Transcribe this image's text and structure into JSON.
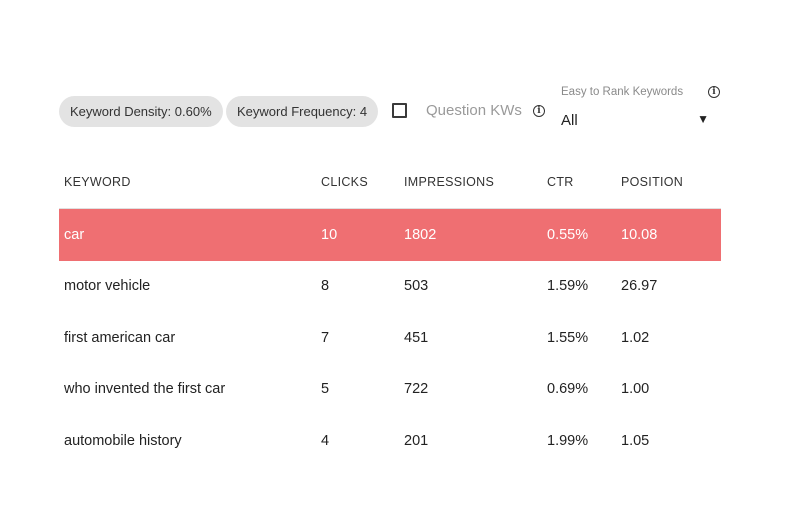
{
  "filters": {
    "density_chip": "Keyword Density: 0.60%",
    "frequency_chip": "Keyword Frequency: 4",
    "question_kws_label": "Question KWs",
    "question_kws_checked": false,
    "rank_label": "Easy to Rank Keywords",
    "rank_value": "All"
  },
  "colors": {
    "highlight_row": "#ef6f72",
    "chip_bg": "#e3e3e3"
  },
  "table": {
    "headers": {
      "keyword": "KEYWORD",
      "clicks": "CLICKS",
      "impressions": "IMPRESSIONS",
      "ctr": "CTR",
      "position": "POSITION"
    },
    "rows": [
      {
        "keyword": "car",
        "clicks": "10",
        "impressions": "1802",
        "ctr": "0.55%",
        "position": "10.08",
        "highlighted": true
      },
      {
        "keyword": "motor vehicle",
        "clicks": "8",
        "impressions": "503",
        "ctr": "1.59%",
        "position": "26.97"
      },
      {
        "keyword": "first american car",
        "clicks": "7",
        "impressions": "451",
        "ctr": "1.55%",
        "position": "1.02"
      },
      {
        "keyword": "who invented the first car",
        "clicks": "5",
        "impressions": "722",
        "ctr": "0.69%",
        "position": "1.00"
      },
      {
        "keyword": "automobile history",
        "clicks": "4",
        "impressions": "201",
        "ctr": "1.99%",
        "position": "1.05"
      }
    ]
  }
}
